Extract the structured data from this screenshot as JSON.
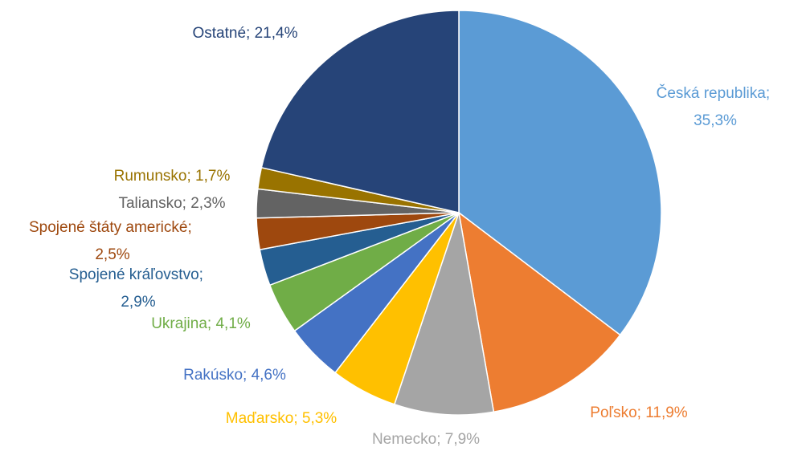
{
  "chart_data": {
    "type": "pie",
    "categories": [
      "Česká republika",
      "Poľsko",
      "Nemecko",
      "Maďarsko",
      "Rakúsko",
      "Ukrajina",
      "Spojené kráľovstvo",
      "Spojené štáty americké",
      "Taliansko",
      "Rumunsko",
      "Ostatné"
    ],
    "values": [
      35.3,
      11.9,
      7.9,
      5.3,
      4.6,
      4.1,
      2.9,
      2.5,
      2.3,
      1.7,
      21.4
    ],
    "value_labels": [
      "35,3%",
      "11,9%",
      "7,9%",
      "5,3%",
      "4,6%",
      "4,1%",
      "2,9%",
      "2,5%",
      "2,3%",
      "1,7%",
      "21,4%"
    ],
    "label_separator": "; ",
    "colors": [
      "#5b9bd5",
      "#ed7d31",
      "#a5a5a5",
      "#ffc000",
      "#4472c4",
      "#70ad47",
      "#255e91",
      "#9e480e",
      "#636363",
      "#997300",
      "#264478"
    ]
  }
}
